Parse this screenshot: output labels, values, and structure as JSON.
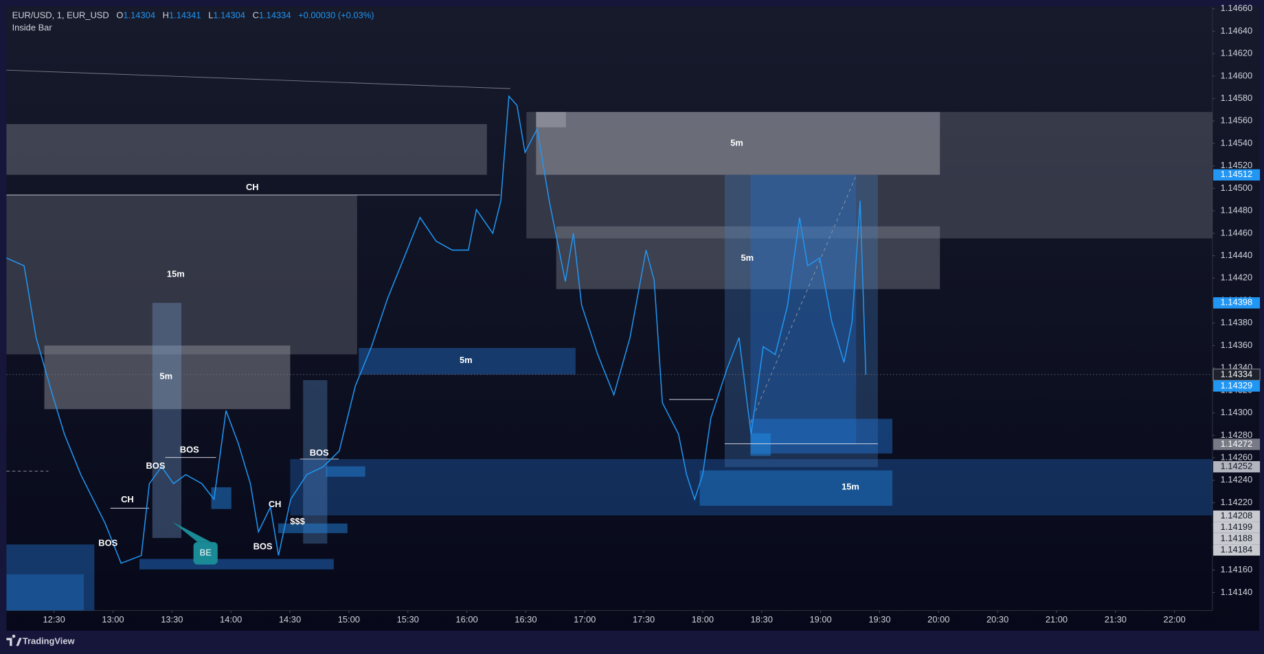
{
  "header": {
    "symbol": "EUR/USD, 1, EUR_USD",
    "o_label": "O",
    "open": "1.14304",
    "h_label": "H",
    "high": "1.14341",
    "l_label": "L",
    "low": "1.14304",
    "c_label": "C",
    "close": "1.14334",
    "change": "+0.00030 (+0.03%)",
    "indicator": "Inside Bar"
  },
  "chart_data": {
    "type": "line",
    "x": [
      725.8,
      734.8,
      740.9,
      749.2,
      755.3,
      763.6,
      775.9,
      784.1,
      794.4,
      798.5,
      804.7,
      810.8,
      817.0,
      825.2,
      831.4,
      837.5,
      843.7,
      849.9,
      854.0,
      860.1,
      864.2,
      870.4,
      878.6,
      886.9,
      895.1,
      903.3,
      911.5,
      919.7,
      928.0,
      936.2,
      944.4,
      952.6,
      960.8,
      964.9,
      973.2,
      977.3,
      981.4,
      985.5,
      989.6,
      995.8,
      1001.9,
      1010.1,
      1014.2,
      1018.4,
      1026.6,
      1034.8,
      1043.0,
      1051.2,
      1055.3,
      1059.5,
      1067.7,
      1071.8,
      1075.9,
      1080.0,
      1084.1,
      1092.3,
      1098.5,
      1104.6,
      1110.8,
      1116.9,
      1123.1,
      1129.3,
      1133.4,
      1139.6,
      1145.7,
      1151.9,
      1156.0,
      1160.1,
      1163.0
    ],
    "series": [
      {
        "color": "#2196f3",
        "values": [
          1.14438,
          1.14431,
          1.14367,
          1.14316,
          1.14281,
          1.14245,
          1.14202,
          1.14166,
          1.14173,
          1.14237,
          1.14252,
          1.14237,
          1.14245,
          1.14237,
          1.14223,
          1.14302,
          1.14273,
          1.14237,
          1.14194,
          1.14216,
          1.14173,
          1.14223,
          1.14245,
          1.14252,
          1.14266,
          1.14324,
          1.14359,
          1.14402,
          1.14438,
          1.14474,
          1.14453,
          1.14445,
          1.14445,
          1.14481,
          1.1446,
          1.14489,
          1.14582,
          1.14574,
          1.14532,
          1.14553,
          1.14489,
          1.14417,
          1.1446,
          1.14396,
          1.14352,
          1.14316,
          1.14367,
          1.14445,
          1.14418,
          1.14309,
          1.14281,
          1.14245,
          1.14223,
          1.14245,
          1.14295,
          1.14339,
          1.14367,
          1.14281,
          1.14359,
          1.14352,
          1.14395,
          1.14474,
          1.14431,
          1.14438,
          1.14381,
          1.14345,
          1.14381,
          1.14489,
          1.14334
        ]
      }
    ],
    "xlim": [
      725.8,
      1339.3
    ],
    "ylim": [
      1.14124,
      1.14662
    ],
    "xticks": [
      {
        "value": 750,
        "label": "12:30"
      },
      {
        "value": 780,
        "label": "13:00"
      },
      {
        "value": 810,
        "label": "13:30"
      },
      {
        "value": 840,
        "label": "14:00"
      },
      {
        "value": 870,
        "label": "14:30"
      },
      {
        "value": 900,
        "label": "15:00"
      },
      {
        "value": 930,
        "label": "15:30"
      },
      {
        "value": 960,
        "label": "16:00"
      },
      {
        "value": 990,
        "label": "16:30"
      },
      {
        "value": 1020,
        "label": "17:00"
      },
      {
        "value": 1050,
        "label": "17:30"
      },
      {
        "value": 1080,
        "label": "18:00"
      },
      {
        "value": 1110,
        "label": "18:30"
      },
      {
        "value": 1140,
        "label": "19:00"
      },
      {
        "value": 1170,
        "label": "19:30"
      },
      {
        "value": 1200,
        "label": "20:00"
      },
      {
        "value": 1230,
        "label": "20:30"
      },
      {
        "value": 1260,
        "label": "21:00"
      },
      {
        "value": 1290,
        "label": "21:30"
      },
      {
        "value": 1320,
        "label": "22:00"
      }
    ],
    "yticks": [
      {
        "value": 1.1414,
        "label": "1.14140"
      },
      {
        "value": 1.1416,
        "label": "1.14160"
      },
      {
        "value": 1.1418,
        "label": "1.14180"
      },
      {
        "value": 1.142,
        "label": "1.14200"
      },
      {
        "value": 1.1422,
        "label": "1.14220"
      },
      {
        "value": 1.1424,
        "label": "1.14240"
      },
      {
        "value": 1.1426,
        "label": "1.14260"
      },
      {
        "value": 1.1428,
        "label": "1.14280"
      },
      {
        "value": 1.143,
        "label": "1.14300"
      },
      {
        "value": 1.1432,
        "label": "1.14320"
      },
      {
        "value": 1.1434,
        "label": "1.14340"
      },
      {
        "value": 1.1436,
        "label": "1.14360"
      },
      {
        "value": 1.1438,
        "label": "1.14380"
      },
      {
        "value": 1.144,
        "label": "1.14400"
      },
      {
        "value": 1.1442,
        "label": "1.14420"
      },
      {
        "value": 1.1444,
        "label": "1.14440"
      },
      {
        "value": 1.1446,
        "label": "1.14460"
      },
      {
        "value": 1.1448,
        "label": "1.14480"
      },
      {
        "value": 1.145,
        "label": "1.14500"
      },
      {
        "value": 1.1452,
        "label": "1.14520"
      },
      {
        "value": 1.1454,
        "label": "1.14540"
      },
      {
        "value": 1.1456,
        "label": "1.14560"
      },
      {
        "value": 1.1458,
        "label": "1.14580"
      },
      {
        "value": 1.146,
        "label": "1.14600"
      },
      {
        "value": 1.1462,
        "label": "1.14620"
      },
      {
        "value": 1.1464,
        "label": "1.14640"
      },
      {
        "value": 1.1466,
        "label": "1.14660"
      }
    ],
    "price_badges": [
      {
        "value": 1.14512,
        "color": "#2196f3"
      },
      {
        "value": 1.14398,
        "color": "#2196f3"
      },
      {
        "value": 1.14334,
        "color": "#1e222d"
      },
      {
        "value": 1.14329,
        "color": "#2196f3"
      },
      {
        "value": 1.14272,
        "color": "#787b86"
      },
      {
        "value": 1.14252,
        "color": "#b2b5be"
      },
      {
        "value": 1.14208,
        "color": "#c8cad0"
      },
      {
        "value": 1.14199,
        "color": "#c8cad0"
      },
      {
        "value": 1.14188,
        "color": "#c8cad0"
      },
      {
        "value": 1.14184,
        "color": "#c8cad0"
      }
    ]
  },
  "drawing_labels": [
    "15m",
    "5m",
    "5m",
    "5m",
    "5m",
    "15m",
    "CH",
    "CH",
    "CH",
    "BOS",
    "BOS",
    "BOS",
    "BOS",
    "BOS",
    "$$$",
    "BE"
  ],
  "footer": {
    "brand": "TradingView"
  }
}
